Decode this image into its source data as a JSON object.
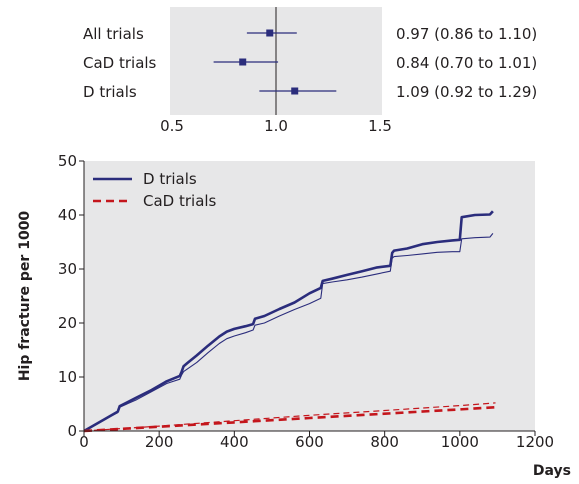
{
  "chart_data": [
    {
      "type": "forest",
      "xlim": [
        0.5,
        1.5
      ],
      "ticks": [
        "0.5",
        "1.0",
        "1.5"
      ],
      "reference_line": 1.0,
      "rows": [
        {
          "label": "All trials",
          "estimate": 0.97,
          "lower": 0.86,
          "upper": 1.1,
          "text": "0.97 (0.86 to 1.10)"
        },
        {
          "label": "CaD trials",
          "estimate": 0.84,
          "lower": 0.7,
          "upper": 1.01,
          "text": "0.84 (0.70 to 1.01)"
        },
        {
          "label": "D trials",
          "estimate": 1.09,
          "lower": 0.92,
          "upper": 1.29,
          "text": "1.09 (0.92 to 1.29)"
        }
      ]
    },
    {
      "type": "line",
      "xlabel": "Days",
      "ylabel": "Hip fracture per 1000",
      "xlim": [
        0,
        1200
      ],
      "ylim": [
        0,
        50
      ],
      "xticks": [
        "0",
        "200",
        "400",
        "600",
        "800",
        "1000",
        "1200"
      ],
      "yticks": [
        "0",
        "10",
        "20",
        "30",
        "40",
        "50"
      ],
      "grid": false,
      "legend": "top-left",
      "series": [
        {
          "name": "D trials",
          "style": "solid-thick",
          "color": "#2b2d7c",
          "x": [
            0,
            50,
            90,
            95,
            140,
            180,
            220,
            255,
            260,
            265,
            275,
            300,
            330,
            360,
            380,
            400,
            430,
            450,
            455,
            480,
            520,
            560,
            600,
            630,
            635,
            660,
            700,
            740,
            780,
            815,
            820,
            825,
            860,
            900,
            940,
            980,
            1000,
            1005,
            1040,
            1080,
            1088
          ],
          "y": [
            0,
            2.0,
            3.6,
            4.6,
            6.2,
            7.6,
            9.2,
            10.2,
            11.0,
            12.0,
            12.6,
            14.0,
            15.8,
            17.5,
            18.4,
            18.9,
            19.4,
            19.8,
            20.8,
            21.3,
            22.6,
            23.8,
            25.5,
            26.5,
            27.8,
            28.2,
            28.9,
            29.6,
            30.3,
            30.6,
            33.0,
            33.4,
            33.8,
            34.6,
            35.0,
            35.3,
            35.4,
            39.6,
            40.0,
            40.1,
            40.7
          ]
        },
        {
          "name": "",
          "style": "solid-thin",
          "color": "#2b2d7c",
          "x": [
            0,
            50,
            90,
            95,
            140,
            180,
            220,
            255,
            260,
            265,
            275,
            300,
            330,
            360,
            380,
            400,
            430,
            450,
            455,
            480,
            520,
            560,
            600,
            630,
            635,
            660,
            700,
            740,
            780,
            815,
            820,
            825,
            860,
            900,
            940,
            980,
            1000,
            1005,
            1040,
            1080,
            1088
          ],
          "y": [
            0,
            2.0,
            3.4,
            4.4,
            5.8,
            7.3,
            8.8,
            9.6,
            10.4,
            11.0,
            11.5,
            12.7,
            14.5,
            16.2,
            17.1,
            17.6,
            18.2,
            18.7,
            19.6,
            20.0,
            21.3,
            22.5,
            23.6,
            24.6,
            27.3,
            27.6,
            28.0,
            28.5,
            29.1,
            29.6,
            32.0,
            32.3,
            32.5,
            32.8,
            33.1,
            33.2,
            33.2,
            35.6,
            35.8,
            35.9,
            36.6
          ]
        },
        {
          "name": "CaD trials",
          "style": "dashed-thick",
          "color": "#c4161c",
          "x": [
            0,
            200,
            400,
            600,
            800,
            1000,
            1095
          ],
          "y": [
            0,
            0.8,
            1.6,
            2.4,
            3.2,
            4.0,
            4.4
          ]
        },
        {
          "name": "",
          "style": "dashed-thin",
          "color": "#c4161c",
          "x": [
            0,
            200,
            400,
            600,
            800,
            1000,
            1095
          ],
          "y": [
            0,
            0.9,
            1.9,
            2.9,
            3.8,
            4.7,
            5.2
          ]
        }
      ]
    }
  ]
}
